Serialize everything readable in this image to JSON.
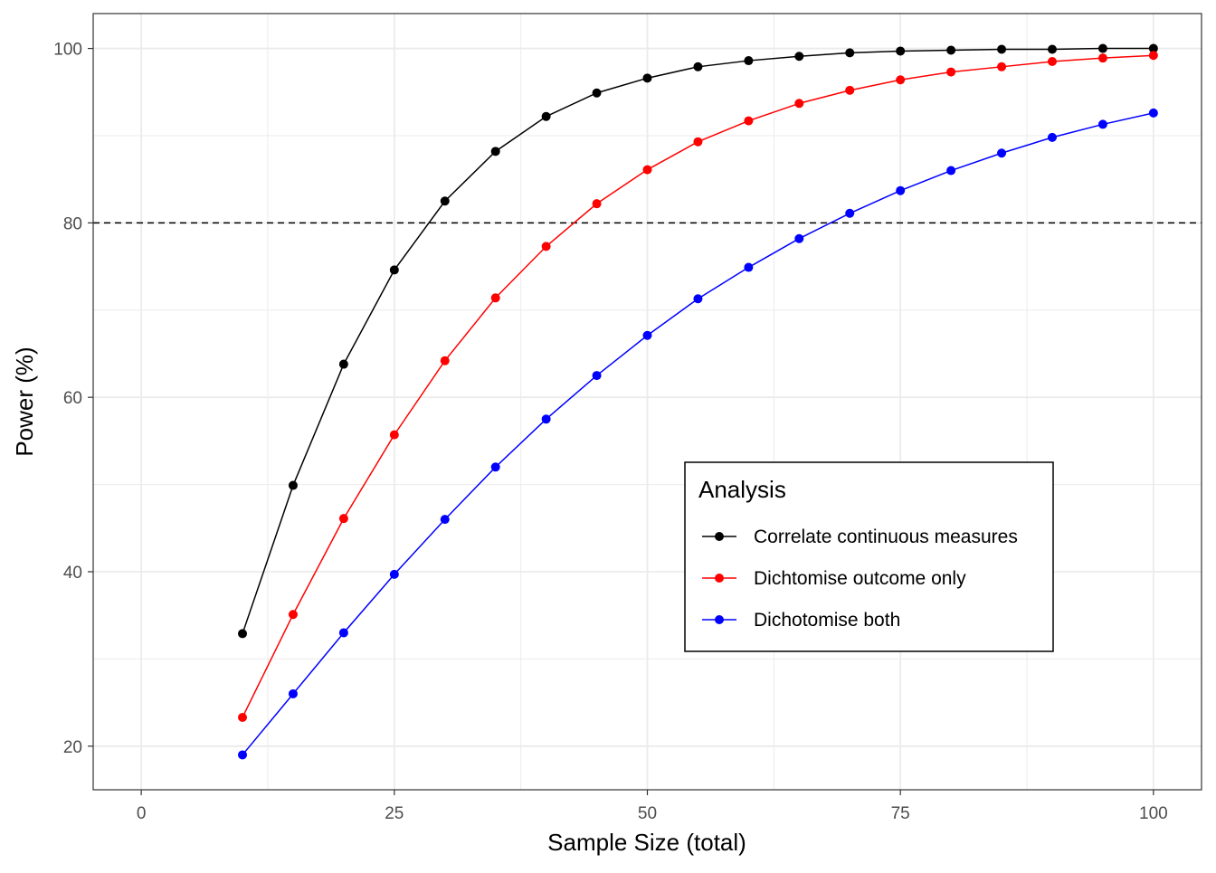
{
  "chart_data": {
    "type": "line",
    "title": "",
    "xlabel": "Sample Size (total)",
    "ylabel": "Power (%)",
    "xlim": [
      -4.75,
      104.75
    ],
    "ylim": [
      15.0,
      104.0
    ],
    "x_ticks": [
      0,
      25,
      50,
      75,
      100
    ],
    "y_ticks": [
      20,
      40,
      60,
      80,
      100
    ],
    "grid": true,
    "reference_line": {
      "y": 80,
      "style": "dashed",
      "color": "#000000"
    },
    "x": [
      10,
      15,
      20,
      25,
      30,
      35,
      40,
      45,
      50,
      55,
      60,
      65,
      70,
      75,
      80,
      85,
      90,
      95,
      100
    ],
    "series": [
      {
        "name": "Correlate continuous measures",
        "color": "#000000",
        "values": [
          32.9,
          49.9,
          63.8,
          74.6,
          82.5,
          88.2,
          92.2,
          94.9,
          96.6,
          97.9,
          98.6,
          99.1,
          99.5,
          99.7,
          99.8,
          99.9,
          99.9,
          100.0,
          100.0
        ]
      },
      {
        "name": "Dichtomise outcome only",
        "color": "#ff0000",
        "values": [
          23.3,
          35.1,
          46.1,
          55.7,
          64.2,
          71.4,
          77.3,
          82.2,
          86.1,
          89.3,
          91.7,
          93.7,
          95.2,
          96.4,
          97.3,
          97.9,
          98.5,
          98.9,
          99.2
        ]
      },
      {
        "name": "Dichotomise both",
        "color": "#0000ff",
        "values": [
          19.0,
          26.0,
          33.0,
          39.7,
          46.0,
          52.0,
          57.5,
          62.5,
          67.1,
          71.3,
          74.9,
          78.2,
          81.1,
          83.7,
          86.0,
          88.0,
          89.8,
          91.3,
          92.6
        ]
      }
    ],
    "legend": {
      "title": "Analysis",
      "position": "lower-right inside"
    }
  }
}
